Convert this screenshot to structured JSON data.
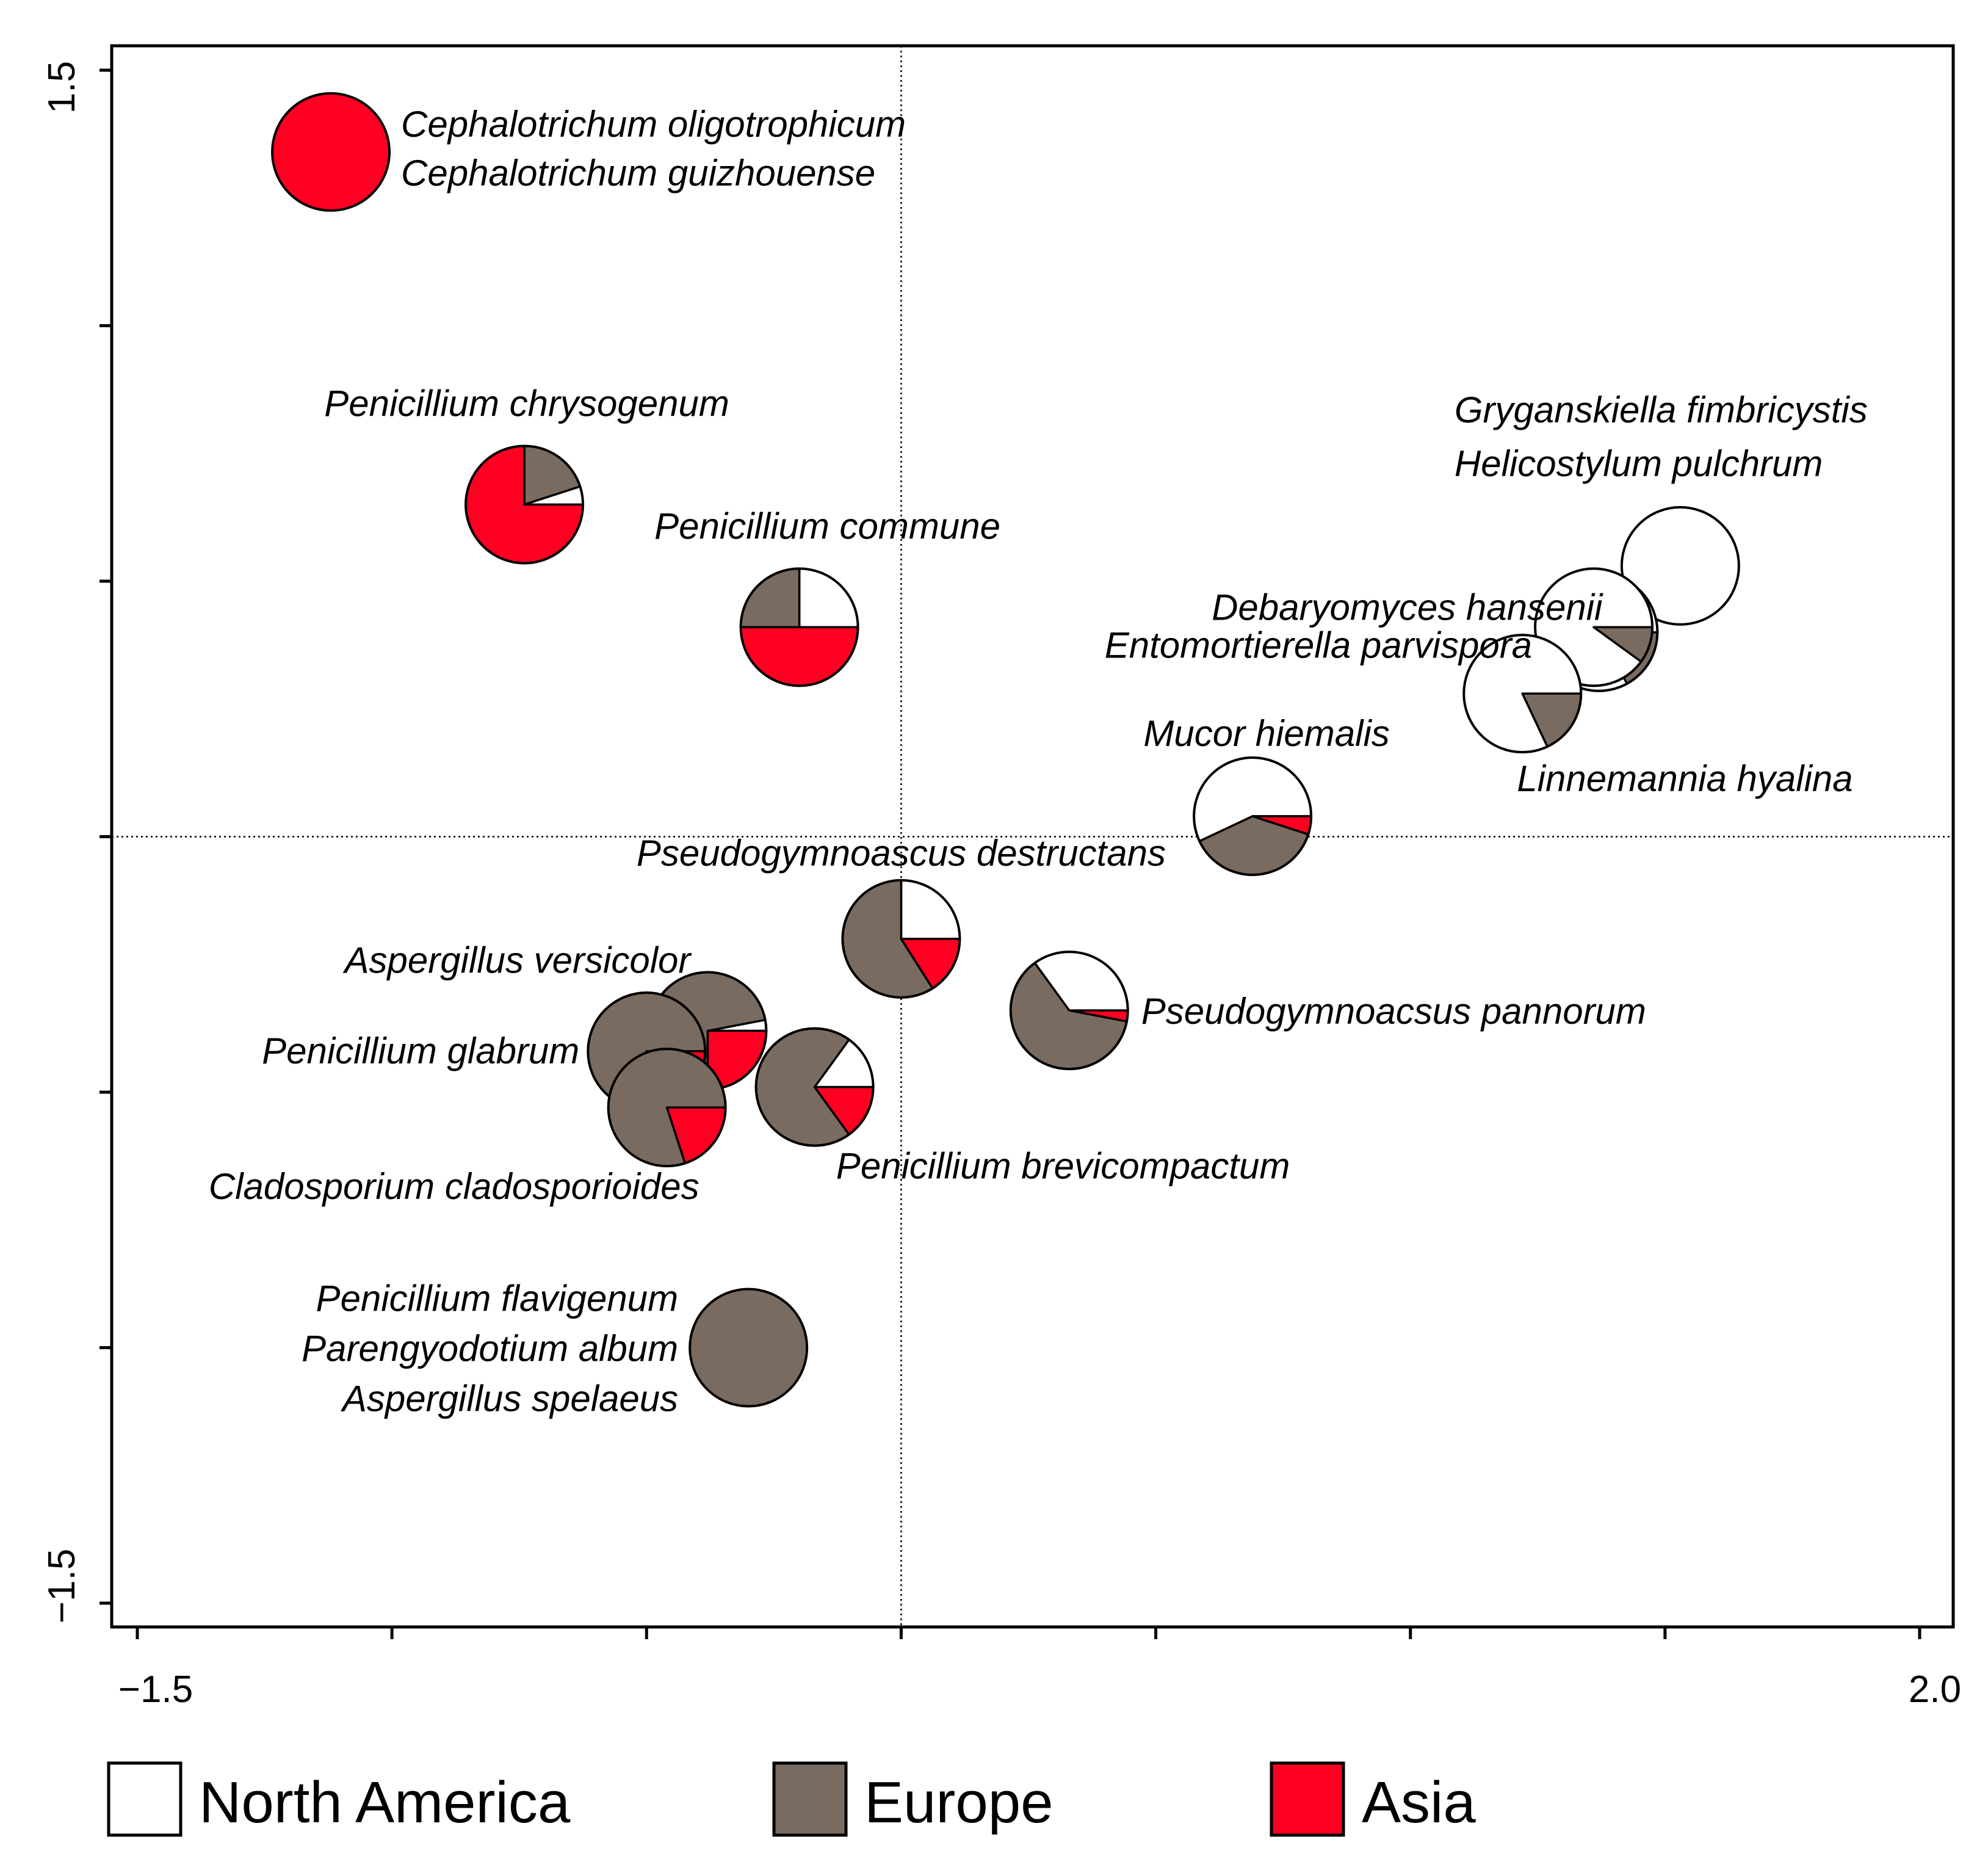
{
  "chart_data": {
    "type": "scatter",
    "subtype": "pie-scatter",
    "xlim": [
      -1.5,
      2.0
    ],
    "ylim": [
      -1.5,
      1.5
    ],
    "x_ticks": [
      -1.5,
      -1.0,
      -0.5,
      0,
      0.5,
      1.0,
      1.5,
      2.0
    ],
    "y_ticks": [
      -1.5,
      -1.0,
      -0.5,
      0,
      0.5,
      1.0,
      1.5
    ],
    "x_tick_labels": [
      "−1.5",
      "2.0"
    ],
    "y_tick_labels": [
      "1.5",
      "−1.5"
    ],
    "reference_lines": {
      "x": 0,
      "y": 0,
      "style": "dotted"
    },
    "grid": false,
    "categories": [
      {
        "name": "North America",
        "color": "#ffffff"
      },
      {
        "name": "Europe",
        "color": "#7a6b60"
      },
      {
        "name": "Asia",
        "color": "#ff0022"
      }
    ],
    "legend": {
      "position": "bottom",
      "entries": [
        "North America",
        "Europe",
        "Asia"
      ]
    },
    "points": [
      {
        "x": -1.12,
        "y": 1.34,
        "shares": [
          0,
          0,
          1
        ],
        "labels": [
          "Cephalotrichum oligotrophicum",
          "Cephalotrichum guizhouense"
        ]
      },
      {
        "x": -0.74,
        "y": 0.65,
        "shares": [
          0.05,
          0.2,
          0.75
        ],
        "labels": [
          "Penicillium chrysogenum"
        ]
      },
      {
        "x": -0.2,
        "y": 0.41,
        "shares": [
          0.25,
          0.25,
          0.5
        ],
        "labels": [
          "Penicillium commune"
        ]
      },
      {
        "x": 1.53,
        "y": 0.53,
        "shares": [
          1,
          0,
          0
        ],
        "labels": [
          "Gryganskiella fimbricystis",
          "Helicostylum pulchrum"
        ]
      },
      {
        "x": 1.37,
        "y": 0.4,
        "shares": [
          0.83,
          0.17,
          0
        ],
        "labels": [
          "Debaryomyces hansenii"
        ]
      },
      {
        "x": 1.36,
        "y": 0.41,
        "shares": [
          0.9,
          0.1,
          0
        ],
        "labels": [
          "Entomortierella parvispora"
        ]
      },
      {
        "x": 1.22,
        "y": 0.28,
        "shares": [
          0.82,
          0.18,
          0
        ],
        "labels": [
          "Linnemannia hyalina"
        ]
      },
      {
        "x": 0.69,
        "y": 0.04,
        "shares": [
          0.57,
          0.38,
          0.05
        ],
        "labels": [
          "Mucor hiemalis"
        ]
      },
      {
        "x": 0.0,
        "y": -0.2,
        "shares": [
          0.25,
          0.59,
          0.16
        ],
        "labels": [
          "Pseudogymnoascus destructans"
        ]
      },
      {
        "x": 0.33,
        "y": -0.34,
        "shares": [
          0.35,
          0.62,
          0.03
        ],
        "labels": [
          "Pseudogymnoacsus pannorum"
        ]
      },
      {
        "x": -0.38,
        "y": -0.38,
        "shares": [
          0.03,
          0.72,
          0.25
        ],
        "labels": [
          "Aspergillus versicolor"
        ]
      },
      {
        "x": -0.5,
        "y": -0.42,
        "shares": [
          0,
          0.75,
          0.25
        ],
        "labels": [
          "Penicillium glabrum"
        ]
      },
      {
        "x": -0.46,
        "y": -0.53,
        "shares": [
          0,
          0.8,
          0.2
        ],
        "labels": [
          "Cladosporium cladosporioides"
        ]
      },
      {
        "x": -0.17,
        "y": -0.49,
        "shares": [
          0.15,
          0.7,
          0.15
        ],
        "labels": [
          "Penicillium brevicompactum"
        ]
      },
      {
        "x": -0.3,
        "y": -1.0,
        "shares": [
          0,
          1,
          0
        ],
        "labels": [
          "Penicillium flavigenum",
          "Parengyodotium album",
          "Aspergillus spelaeus"
        ]
      }
    ]
  }
}
